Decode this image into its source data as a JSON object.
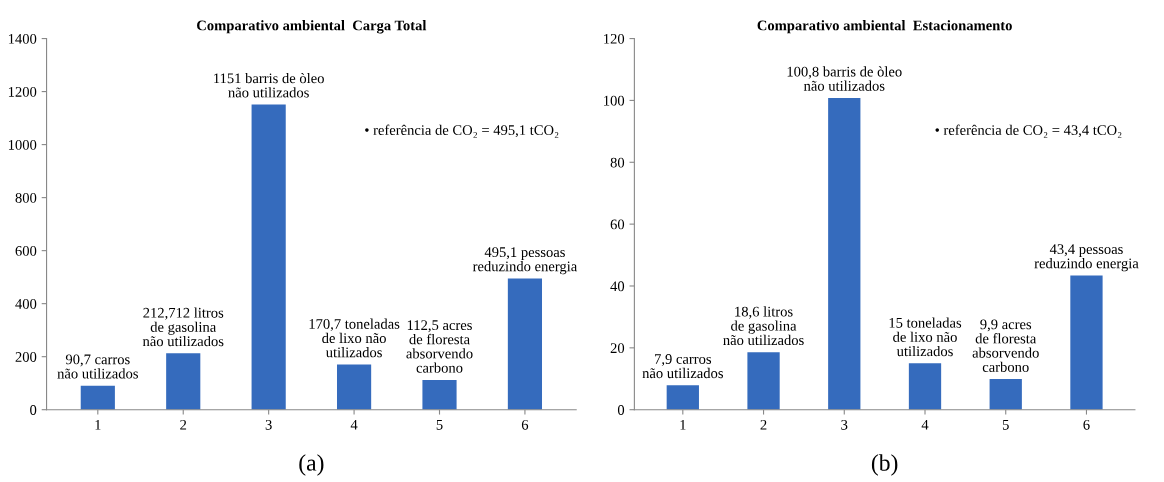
{
  "chart_data": [
    {
      "type": "bar",
      "title": "Comparativo ambiental  Carga Total",
      "categories": [
        "1",
        "2",
        "3",
        "4",
        "5",
        "6"
      ],
      "values": [
        90.7,
        212.712,
        1151,
        170.7,
        112.5,
        495.1
      ],
      "color": "#356bbd",
      "ylim": [
        0,
        1400
      ],
      "yticks": [
        0,
        200,
        400,
        600,
        800,
        1000,
        1200,
        1400
      ],
      "grid": false,
      "annotations": [
        {
          "text": "90,7 carros\nnão utilizados",
          "x": "1",
          "y": 90.7
        },
        {
          "text": "212,712 litros\nde gasolina\nnão utilizados",
          "x": "2",
          "y": 212.712
        },
        {
          "text": "1151 barris de òleo\nnão utilizados",
          "x": "3",
          "y": 1151
        },
        {
          "text": "170,7 toneladas\nde lixo não\nutilizados",
          "x": "4",
          "y": 170.7
        },
        {
          "text": "112,5 acres\nde floresta\nabsorvendo\ncarbono",
          "x": "5",
          "y": 112.5
        },
        {
          "text": "495,1 pessoas\nreduzindo energia",
          "x": "6",
          "y": 495.1
        },
        "• referência de CO₂ = 495,1 tCO₂",
        "(a)"
      ]
    },
    {
      "type": "bar",
      "title": "Comparativo ambiental  Estacionamento",
      "categories": [
        "1",
        "2",
        "3",
        "4",
        "5",
        "6"
      ],
      "values": [
        7.9,
        18.6,
        100.8,
        15,
        9.9,
        43.4
      ],
      "color": "#356bbd",
      "ylim": [
        0,
        120
      ],
      "yticks": [
        0,
        20,
        40,
        60,
        80,
        100,
        120
      ],
      "grid": false,
      "annotations": [
        {
          "text": "7,9 carros\nnão utilizados",
          "x": "1",
          "y": 7.9
        },
        {
          "text": "18,6 litros\nde gasolina\nnão utilizados",
          "x": "2",
          "y": 18.6
        },
        {
          "text": "100,8 barris de òleo\nnão utilizados",
          "x": "3",
          "y": 100.8
        },
        {
          "text": "15 toneladas\nde lixo não\nutilizados",
          "x": "4",
          "y": 15
        },
        {
          "text": "9,9 acres\nde floresta\nabsorvendo\ncarbono",
          "x": "5",
          "y": 9.9
        },
        {
          "text": "43,4 pessoas\nreduzindo energia",
          "x": "6",
          "y": 43.4
        },
        "• referência de CO₂ = 43,4 tCO₂",
        "(b)"
      ]
    }
  ]
}
